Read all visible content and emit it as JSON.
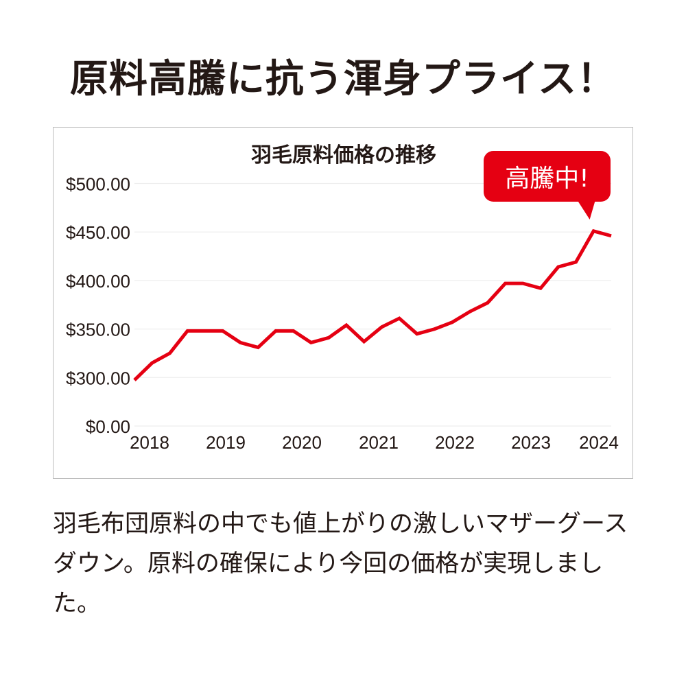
{
  "headline": "原料高騰に抗う渾身プライス！",
  "badge": "高騰中!",
  "body_text": "羽毛布団原料の中でも値上がりの激しいマザーグースダウン。原料の確保により今回の価格が実現しました。",
  "colors": {
    "line": "#e50012",
    "grid": "#eeeeee",
    "text": "#231815"
  },
  "chart_data": {
    "type": "line",
    "title": "羽毛原料価格の推移",
    "xlabel": "",
    "ylabel": "",
    "x_tick_labels": [
      "2018",
      "2019",
      "2020",
      "2021",
      "2022",
      "2023",
      "2024"
    ],
    "y_tick_labels": [
      "$0.00",
      "$300.00",
      "$350.00",
      "$400.00",
      "$450.00",
      "$500.00"
    ],
    "y_ticks": [
      0,
      300,
      350,
      400,
      450,
      500
    ],
    "y_axis_break": "between 0 and 300",
    "grid": true,
    "series": [
      {
        "name": "羽毛原料価格",
        "values": [
          284,
          315,
          325,
          348,
          348,
          348,
          336,
          331,
          348,
          348,
          336,
          341,
          354,
          337,
          352,
          361,
          345,
          350,
          357,
          368,
          377,
          397,
          397,
          392,
          414,
          419,
          451,
          446
        ]
      }
    ]
  }
}
